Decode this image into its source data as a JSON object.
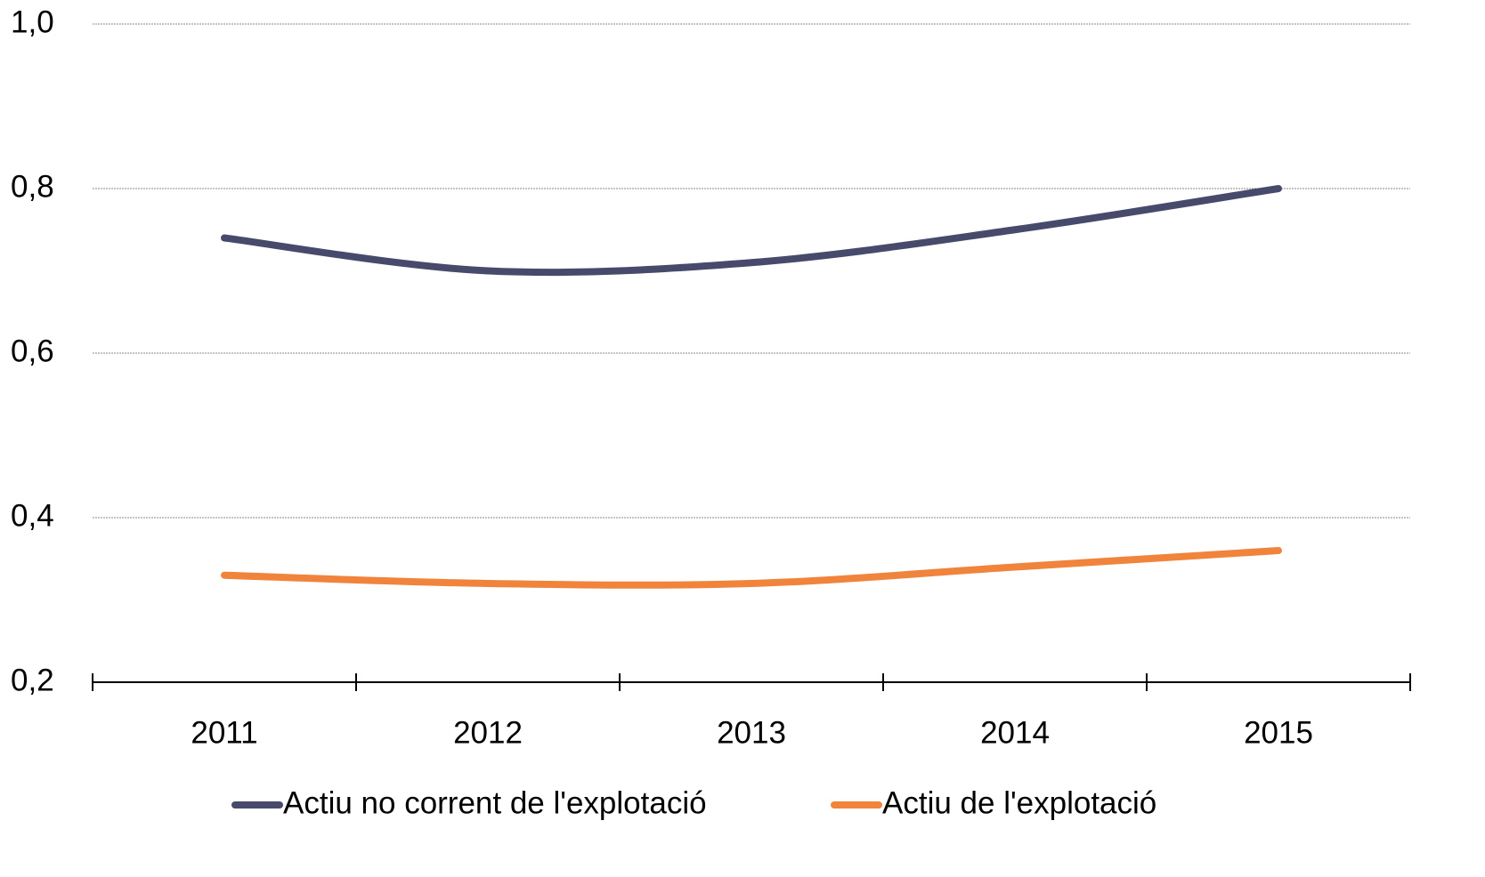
{
  "chart_data": {
    "type": "line",
    "categories": [
      "2011",
      "2012",
      "2013",
      "2014",
      "2015"
    ],
    "series": [
      {
        "name": "Actiu no corrent de l'explotació",
        "color": "#474a6a",
        "values": [
          0.74,
          0.7,
          0.71,
          0.75,
          0.8
        ]
      },
      {
        "name": "Actiu de l'explotació",
        "color": "#f0843c",
        "values": [
          0.33,
          0.32,
          0.32,
          0.34,
          0.36
        ]
      }
    ],
    "ylim": [
      0.2,
      1.0
    ],
    "yticks": [
      {
        "value": 0.2,
        "label": "0,2"
      },
      {
        "value": 0.4,
        "label": "0,4"
      },
      {
        "value": 0.6,
        "label": "0,6"
      },
      {
        "value": 0.8,
        "label": "0,8"
      },
      {
        "value": 1.0,
        "label": "1,0"
      }
    ],
    "grid": true,
    "smooth": true,
    "legend": "bottom"
  }
}
